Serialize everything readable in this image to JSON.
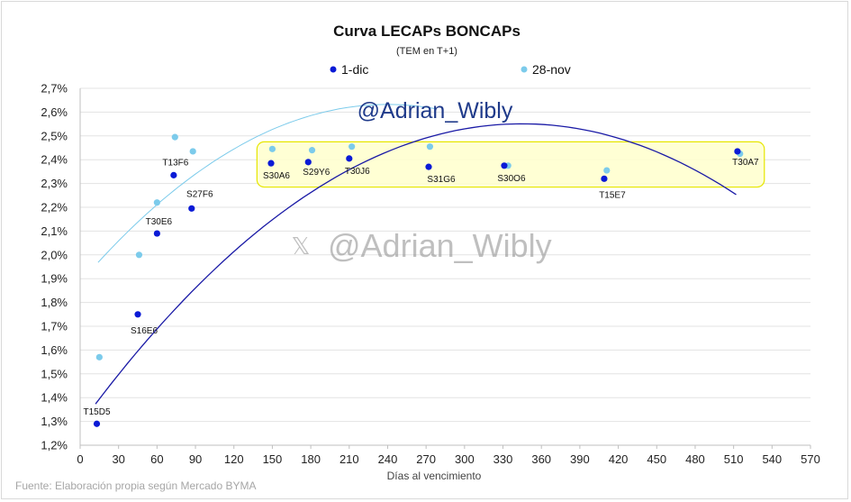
{
  "chart_data": {
    "type": "scatter",
    "title": "Curva LECAPs BONCAPs",
    "subtitle": "(TEM en T+1)",
    "xlabel": "Días al vencimiento",
    "ylabel": "",
    "source": "Fuente: Elaboración propia según Mercado BYMA",
    "watermark_handle": "@Adrian_Wibly",
    "watermark_x": "@Adrian_Wibly",
    "xlim": [
      0,
      570
    ],
    "ylim": [
      1.2,
      2.7
    ],
    "x_ticks": [
      0,
      30,
      60,
      90,
      120,
      150,
      180,
      210,
      240,
      270,
      300,
      330,
      360,
      390,
      420,
      450,
      480,
      510,
      540,
      570
    ],
    "y_ticks": [
      1.2,
      1.3,
      1.4,
      1.5,
      1.6,
      1.7,
      1.8,
      1.9,
      2.0,
      2.1,
      2.2,
      2.3,
      2.4,
      2.5,
      2.6,
      2.7
    ],
    "y_tick_labels": [
      "1,2%",
      "1,3%",
      "1,4%",
      "1,5%",
      "1,6%",
      "1,7%",
      "1,8%",
      "1,9%",
      "2,0%",
      "2,1%",
      "2,2%",
      "2,3%",
      "2,4%",
      "2,5%",
      "2,6%",
      "2,7%"
    ],
    "grid": "horizontal",
    "legend_position": "top",
    "highlight_box": {
      "x": [
        138,
        534
      ],
      "y": [
        2.285,
        2.475
      ],
      "fill": "#ffffcc",
      "stroke": "#e6e600"
    },
    "series": [
      {
        "name": "1-dic",
        "color": "#0a1ad6",
        "trend_color": "#1a1aa6",
        "points": [
          {
            "x": 13,
            "y": 1.29,
            "label": "T15D5"
          },
          {
            "x": 45,
            "y": 1.75,
            "label": "S16E6"
          },
          {
            "x": 60,
            "y": 2.09,
            "label": "T30E6"
          },
          {
            "x": 73,
            "y": 2.335,
            "label": "T13F6"
          },
          {
            "x": 87,
            "y": 2.195,
            "label": "S27F6"
          },
          {
            "x": 149,
            "y": 2.385,
            "label": "S30A6"
          },
          {
            "x": 178,
            "y": 2.39,
            "label": "S29Y6"
          },
          {
            "x": 210,
            "y": 2.405,
            "label": "T30J6"
          },
          {
            "x": 272,
            "y": 2.37,
            "label": "S31G6"
          },
          {
            "x": 331,
            "y": 2.375,
            "label": "S30O6"
          },
          {
            "x": 409,
            "y": 2.32,
            "label": "T15E7"
          },
          {
            "x": 513,
            "y": 2.435,
            "label": "T30A7"
          }
        ],
        "trend": {
          "x": [
            12,
            512
          ],
          "a": -1.0633e-05,
          "b": 0.007331,
          "c": 1.2872
        }
      },
      {
        "name": "28-nov",
        "color": "#7ccbeb",
        "trend_color": "#7ccbeb",
        "points": [
          {
            "x": 15,
            "y": 1.57
          },
          {
            "x": 46,
            "y": 2.0
          },
          {
            "x": 60,
            "y": 2.22
          },
          {
            "x": 74,
            "y": 2.495
          },
          {
            "x": 88,
            "y": 2.435
          },
          {
            "x": 150,
            "y": 2.445
          },
          {
            "x": 181,
            "y": 2.44
          },
          {
            "x": 212,
            "y": 2.455
          },
          {
            "x": 273,
            "y": 2.455
          },
          {
            "x": 334,
            "y": 2.375
          },
          {
            "x": 411,
            "y": 2.355
          },
          {
            "x": 515,
            "y": 2.425
          }
        ],
        "trend": {
          "x": [
            14,
            278
          ],
          "a": -1.3e-05,
          "b": 0.00624,
          "c": 1.8834
        }
      }
    ]
  }
}
